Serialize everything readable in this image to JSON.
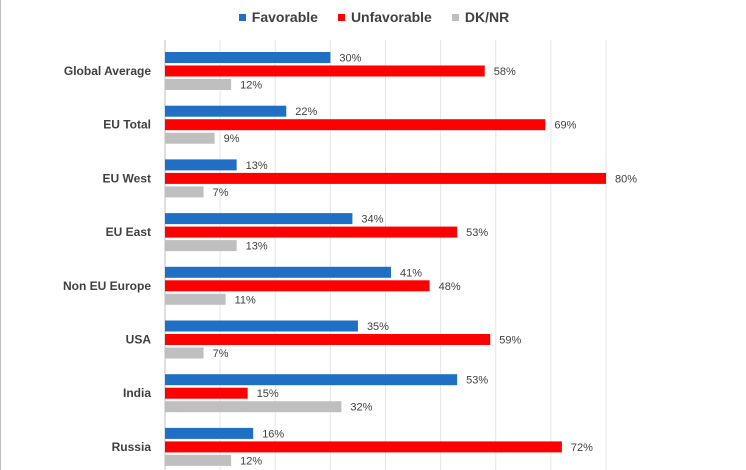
{
  "chart_data": {
    "type": "bar",
    "orientation": "horizontal",
    "categories": [
      "Global Average",
      "EU Total",
      "EU West",
      "EU East",
      "Non EU Europe",
      "USA",
      "India",
      "Russia"
    ],
    "series": [
      {
        "name": "Favorable",
        "color": "#1f6fc5",
        "values": [
          30,
          22,
          13,
          34,
          41,
          35,
          53,
          16
        ],
        "labels": [
          "30%",
          "22%",
          "13%",
          "34%",
          "41%",
          "35%",
          "53%",
          "16%"
        ]
      },
      {
        "name": "Unfavorable",
        "color": "#ff0000",
        "values": [
          58,
          69,
          80,
          53,
          48,
          59,
          15,
          72
        ],
        "labels": [
          "58%",
          "69%",
          "80%",
          "53%",
          "48%",
          "59%",
          "15%",
          "72%"
        ]
      },
      {
        "name": "DK/NR",
        "color": "#bfbfbf",
        "values": [
          12,
          9,
          7,
          13,
          11,
          7,
          32,
          12
        ],
        "labels": [
          "12%",
          "9%",
          "7%",
          "13%",
          "11%",
          "7%",
          "32%",
          "12%"
        ]
      }
    ],
    "xlim": [
      0,
      80
    ],
    "gridlines": true,
    "legend_position": "top"
  }
}
